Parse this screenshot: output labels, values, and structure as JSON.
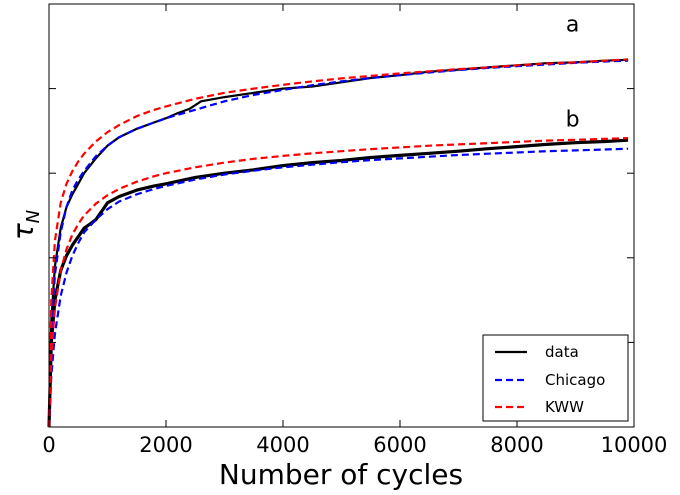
{
  "chart_data": {
    "type": "line",
    "title": "",
    "xlabel": "Number of cycles",
    "ylabel_base": "τ",
    "ylabel_sub": "N",
    "xlim": [
      0,
      10000
    ],
    "ylim": [
      0,
      1
    ],
    "x_ticks": [
      0,
      2000,
      4000,
      6000,
      8000,
      10000
    ],
    "x_tick_labels": [
      "0",
      "2000",
      "4000",
      "6000",
      "8000",
      "10000"
    ],
    "y_ticks_normalized": [
      0.2,
      0.4,
      0.6,
      0.8,
      1.0
    ],
    "grid": false,
    "legend_position": "bottom-right",
    "legend": [
      {
        "label": "data",
        "color": "#000000",
        "style": "solid"
      },
      {
        "label": "Chicago",
        "color": "#0000ff",
        "style": "dashed"
      },
      {
        "label": "KWW",
        "color": "#ff0000",
        "style": "dashed"
      }
    ],
    "annotations": [
      {
        "text": "a",
        "x": 8950,
        "y": 0.935
      },
      {
        "text": "b",
        "x": 8950,
        "y": 0.71
      }
    ],
    "series": [
      {
        "group": "a",
        "kind": "data",
        "color": "#000000",
        "width": 2.2,
        "x": [
          0,
          40,
          100,
          200,
          300,
          400,
          500,
          600,
          800,
          1000,
          1200,
          1500,
          1800,
          2000,
          2200,
          2400,
          2600,
          3000,
          3500,
          4000,
          4500,
          5000,
          5500,
          6000,
          6500,
          7000,
          7500,
          8000,
          8500,
          9000,
          9500,
          9900
        ],
        "y": [
          0,
          0.25,
          0.38,
          0.47,
          0.52,
          0.55,
          0.575,
          0.6,
          0.635,
          0.665,
          0.685,
          0.705,
          0.72,
          0.73,
          0.742,
          0.752,
          0.77,
          0.78,
          0.79,
          0.8,
          0.805,
          0.815,
          0.825,
          0.832,
          0.84,
          0.845,
          0.85,
          0.855,
          0.86,
          0.862,
          0.866,
          0.868
        ]
      },
      {
        "group": "a",
        "kind": "Chicago",
        "color": "#0000ff",
        "width": 2.2,
        "x": [
          0,
          40,
          100,
          200,
          300,
          400,
          500,
          600,
          800,
          1000,
          1200,
          1500,
          1800,
          2000,
          2500,
          3000,
          3500,
          4000,
          4500,
          5000,
          5500,
          6000,
          6500,
          7000,
          7500,
          8000,
          8500,
          9000,
          9500,
          9900
        ],
        "y": [
          0,
          0.22,
          0.36,
          0.46,
          0.52,
          0.56,
          0.585,
          0.605,
          0.64,
          0.665,
          0.685,
          0.705,
          0.72,
          0.73,
          0.75,
          0.77,
          0.785,
          0.797,
          0.808,
          0.817,
          0.825,
          0.832,
          0.838,
          0.844,
          0.849,
          0.853,
          0.857,
          0.861,
          0.864,
          0.866
        ]
      },
      {
        "group": "a",
        "kind": "KWW",
        "color": "#ff0000",
        "width": 2.2,
        "x": [
          0,
          40,
          100,
          200,
          300,
          400,
          500,
          600,
          800,
          1000,
          1200,
          1500,
          1800,
          2000,
          2500,
          3000,
          3500,
          4000,
          4500,
          5000,
          5500,
          6000,
          6500,
          7000,
          7500,
          8000,
          8500,
          9000,
          9500,
          9900
        ],
        "y": [
          0,
          0.3,
          0.44,
          0.53,
          0.575,
          0.605,
          0.628,
          0.646,
          0.675,
          0.697,
          0.714,
          0.735,
          0.75,
          0.758,
          0.776,
          0.79,
          0.8,
          0.809,
          0.817,
          0.824,
          0.83,
          0.836,
          0.841,
          0.846,
          0.85,
          0.855,
          0.859,
          0.862,
          0.866,
          0.869
        ]
      },
      {
        "group": "b",
        "kind": "data",
        "color": "#000000",
        "width": 3.2,
        "x": [
          0,
          40,
          100,
          200,
          300,
          400,
          500,
          600,
          700,
          800,
          900,
          1000,
          1200,
          1500,
          1800,
          2000,
          2500,
          3000,
          3500,
          4000,
          4500,
          5000,
          5500,
          6000,
          6500,
          7000,
          7500,
          8000,
          8500,
          9000,
          9500,
          9900
        ],
        "y": [
          0,
          0.2,
          0.3,
          0.37,
          0.405,
          0.43,
          0.45,
          0.47,
          0.48,
          0.49,
          0.51,
          0.53,
          0.545,
          0.56,
          0.57,
          0.575,
          0.59,
          0.6,
          0.608,
          0.618,
          0.625,
          0.63,
          0.637,
          0.642,
          0.647,
          0.652,
          0.658,
          0.663,
          0.668,
          0.672,
          0.675,
          0.678
        ]
      },
      {
        "group": "b",
        "kind": "Chicago",
        "color": "#0000ff",
        "width": 2.2,
        "x": [
          0,
          40,
          100,
          200,
          300,
          400,
          500,
          600,
          800,
          1000,
          1200,
          1500,
          1800,
          2000,
          2500,
          3000,
          3500,
          4000,
          4500,
          5000,
          5500,
          6000,
          6500,
          7000,
          7500,
          8000,
          8500,
          9000,
          9500,
          9900
        ],
        "y": [
          0,
          0.12,
          0.22,
          0.31,
          0.365,
          0.405,
          0.435,
          0.46,
          0.49,
          0.515,
          0.533,
          0.55,
          0.563,
          0.57,
          0.585,
          0.597,
          0.606,
          0.614,
          0.62,
          0.626,
          0.631,
          0.635,
          0.639,
          0.643,
          0.646,
          0.649,
          0.652,
          0.654,
          0.656,
          0.658
        ]
      },
      {
        "group": "b",
        "kind": "KWW",
        "color": "#ff0000",
        "width": 2.2,
        "x": [
          0,
          40,
          100,
          200,
          300,
          400,
          500,
          600,
          800,
          1000,
          1200,
          1500,
          1800,
          2000,
          2500,
          3000,
          3500,
          4000,
          4500,
          5000,
          5500,
          6000,
          6500,
          7000,
          7500,
          8000,
          8500,
          9000,
          9500,
          9900
        ],
        "y": [
          0,
          0.17,
          0.28,
          0.37,
          0.42,
          0.455,
          0.48,
          0.5,
          0.528,
          0.548,
          0.563,
          0.58,
          0.593,
          0.6,
          0.614,
          0.625,
          0.634,
          0.641,
          0.647,
          0.652,
          0.657,
          0.661,
          0.665,
          0.668,
          0.671,
          0.674,
          0.677,
          0.679,
          0.681,
          0.683
        ]
      }
    ]
  }
}
